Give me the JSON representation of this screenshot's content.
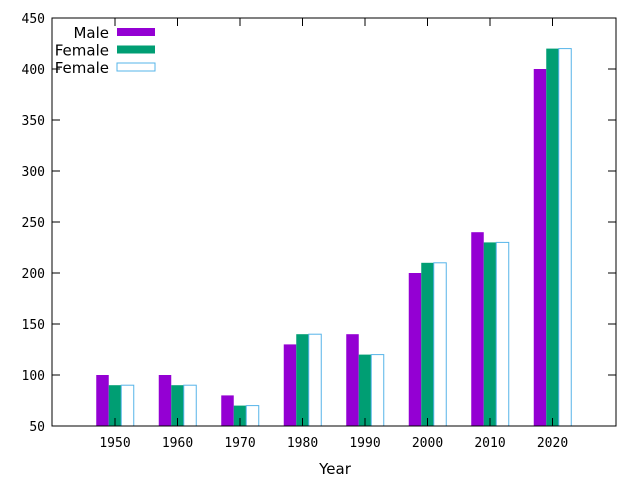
{
  "chart_data": {
    "type": "bar",
    "categories": [
      "1950",
      "1960",
      "1970",
      "1980",
      "1990",
      "2000",
      "2010",
      "2020"
    ],
    "series": [
      {
        "name": "Male",
        "values": [
          100,
          100,
          80,
          130,
          140,
          200,
          240,
          400
        ],
        "fill": "#9400d3",
        "stroke": "#9400d3",
        "filled": true
      },
      {
        "name": "Female",
        "values": [
          90,
          90,
          70,
          140,
          120,
          210,
          230,
          420
        ],
        "fill": "#009e73",
        "stroke": "#009e73",
        "filled": true
      },
      {
        "name": "Female",
        "values": [
          90,
          90,
          70,
          140,
          120,
          210,
          230,
          420
        ],
        "fill": "#ffffff",
        "stroke": "#56b4e9",
        "filled": false
      }
    ],
    "title": "",
    "xlabel": "Year",
    "ylabel": "",
    "ylim": [
      50,
      450
    ],
    "yticks": [
      50,
      100,
      150,
      200,
      250,
      300,
      350,
      400,
      450
    ],
    "grid": false,
    "legend_position": "top-left"
  }
}
